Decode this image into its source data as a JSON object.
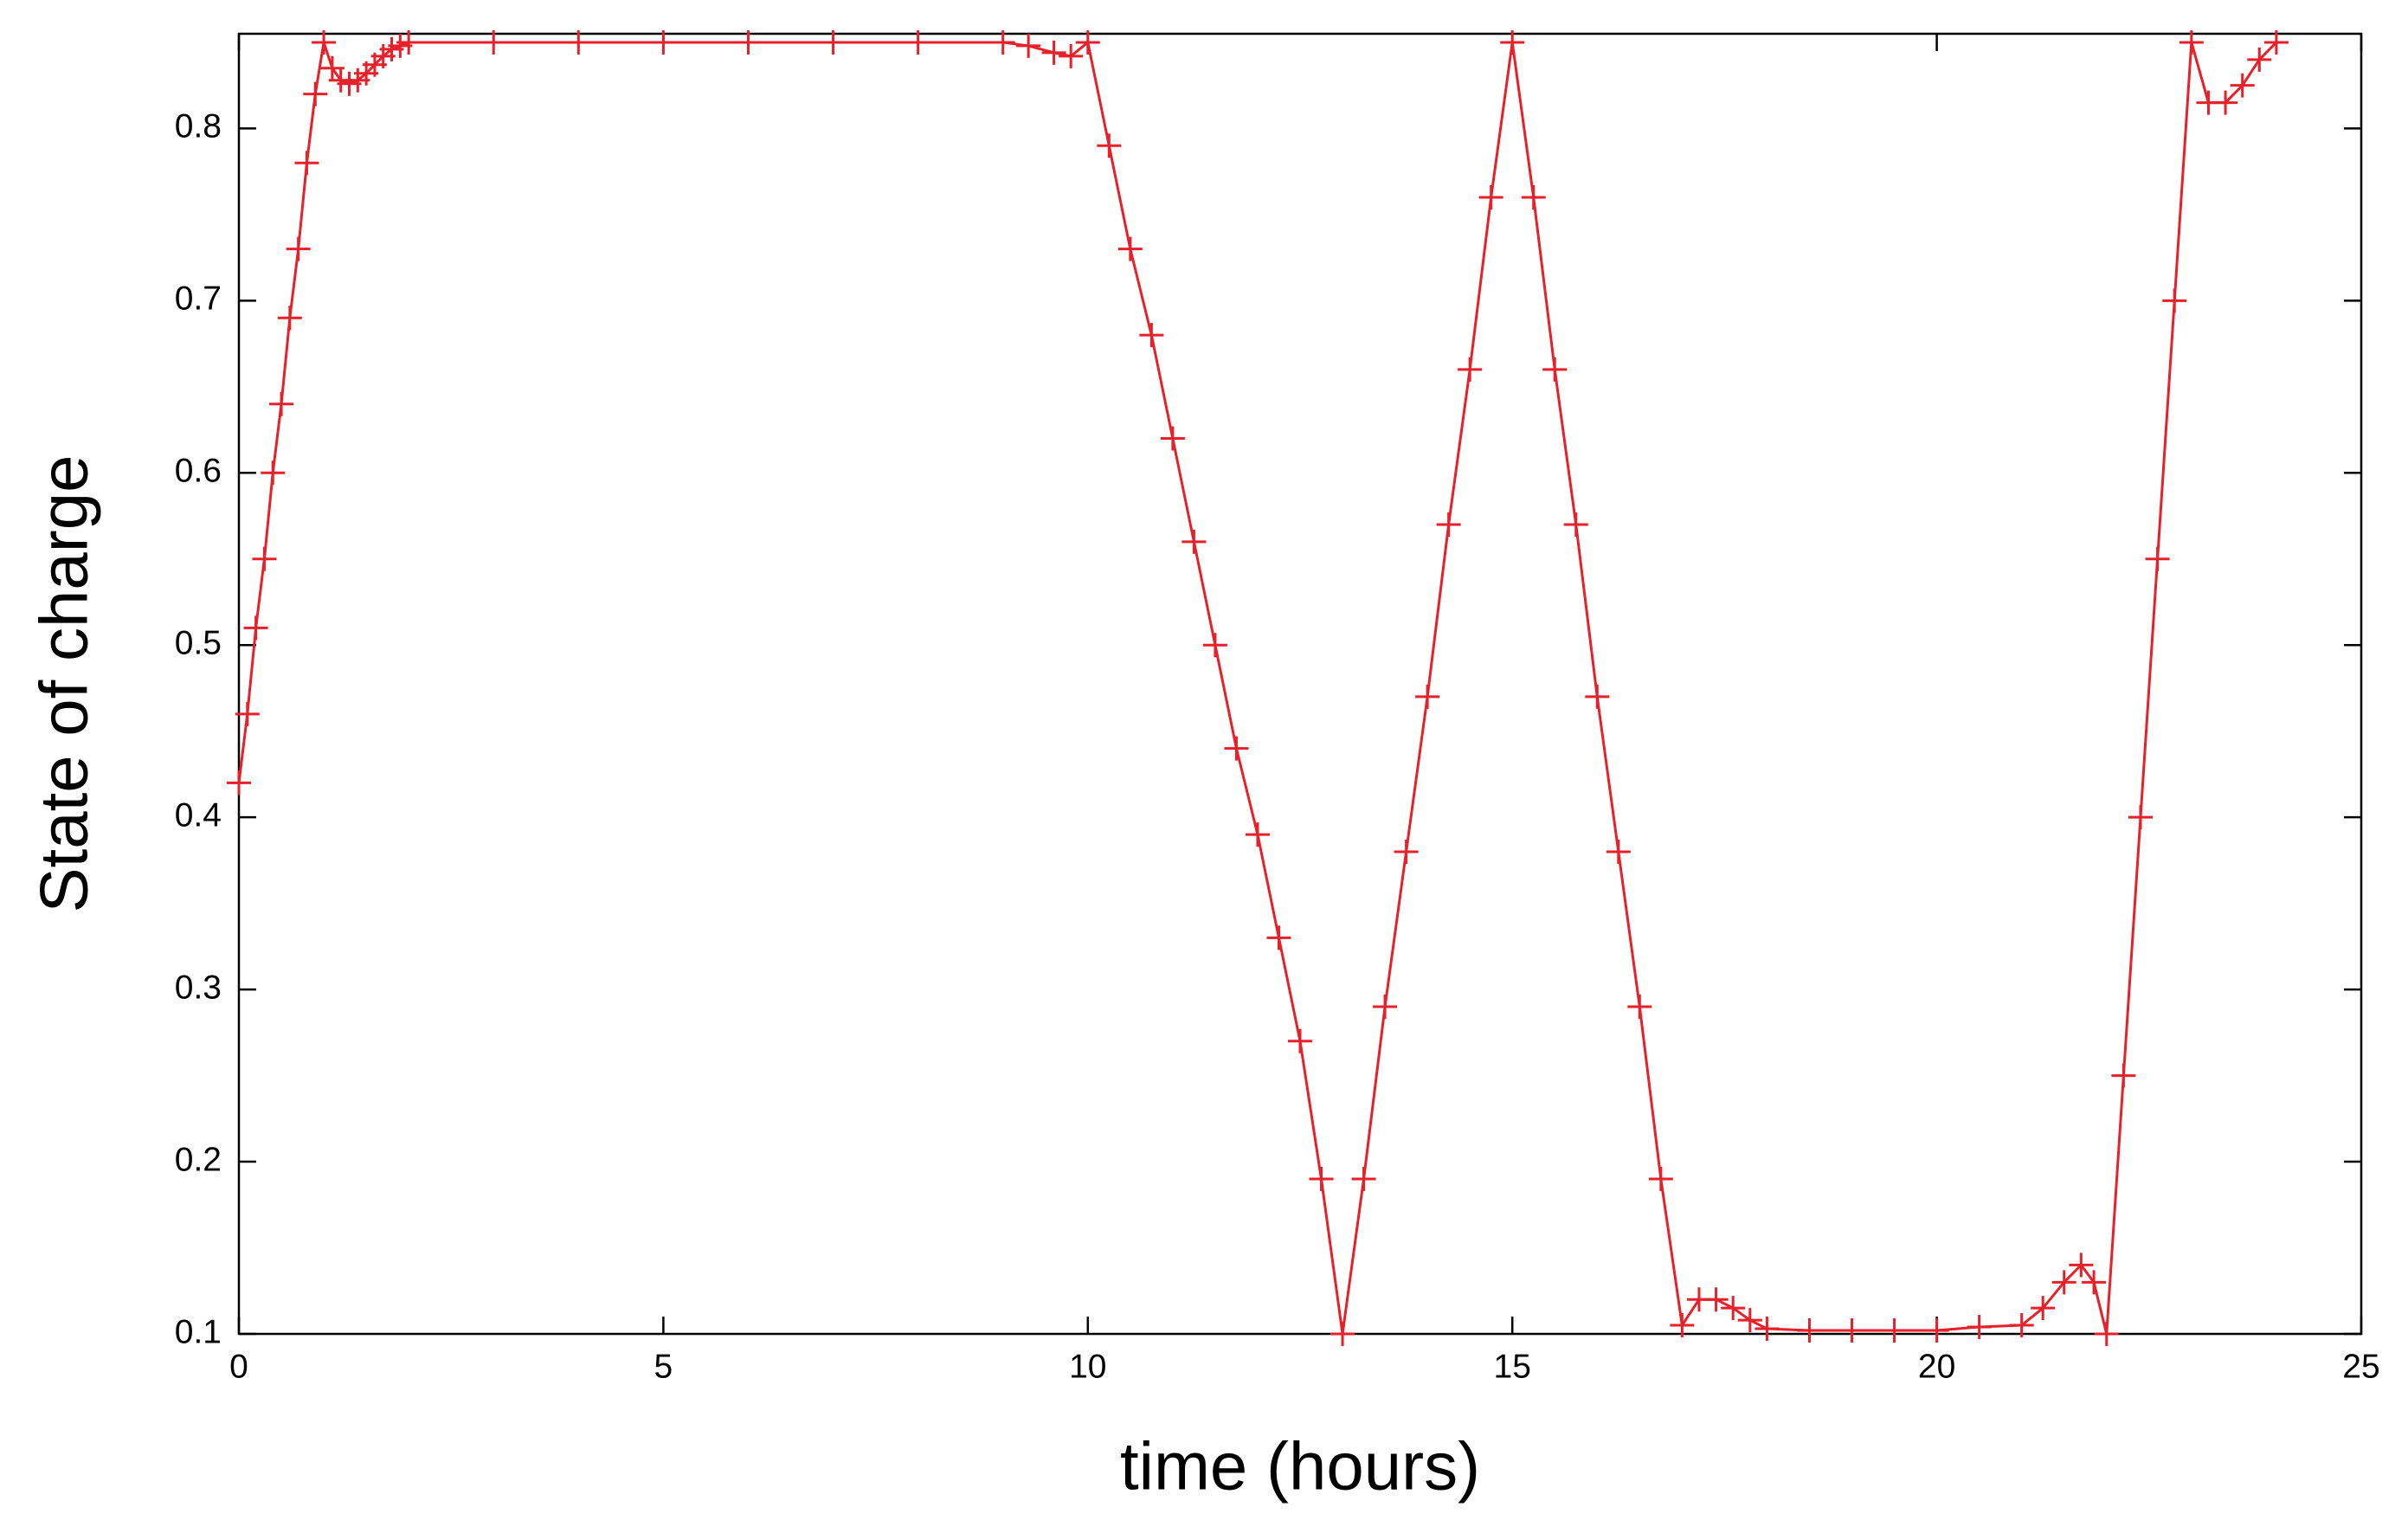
{
  "chart_data": {
    "type": "line",
    "x_label": "time (hours)",
    "y_label": "State of charge",
    "color": "#e8202a",
    "marker": "plus",
    "x": [
      0,
      0.1,
      0.2,
      0.3,
      0.4,
      0.5,
      0.6,
      0.7,
      0.8,
      0.9,
      1.0,
      1.1,
      1.2,
      1.3,
      1.4,
      1.5,
      1.6,
      1.7,
      1.8,
      1.9,
      2.0,
      3,
      4,
      5,
      6,
      7,
      8,
      9,
      9.3,
      9.6,
      9.8,
      10,
      10.25,
      10.5,
      10.75,
      11,
      11.25,
      11.5,
      11.75,
      12,
      12.25,
      12.5,
      12.75,
      13,
      13.25,
      13.5,
      13.75,
      14,
      14.25,
      14.5,
      14.75,
      15,
      15.25,
      15.5,
      15.75,
      16,
      16.25,
      16.5,
      16.75,
      17,
      17.2,
      17.4,
      17.6,
      17.8,
      18,
      18.5,
      19,
      19.5,
      20,
      20.5,
      21,
      21.25,
      21.5,
      21.7,
      21.85,
      22,
      22.2,
      22.4,
      22.6,
      22.8,
      23,
      23.2,
      23.4,
      23.6,
      23.8,
      24
    ],
    "values": [
      0.42,
      0.46,
      0.51,
      0.55,
      0.6,
      0.64,
      0.69,
      0.73,
      0.78,
      0.82,
      0.85,
      0.835,
      0.828,
      0.826,
      0.828,
      0.832,
      0.837,
      0.842,
      0.846,
      0.848,
      0.85,
      0.85,
      0.85,
      0.85,
      0.85,
      0.85,
      0.85,
      0.85,
      0.848,
      0.844,
      0.842,
      0.85,
      0.79,
      0.73,
      0.68,
      0.62,
      0.56,
      0.5,
      0.44,
      0.39,
      0.33,
      0.27,
      0.19,
      0.1,
      0.19,
      0.29,
      0.38,
      0.47,
      0.57,
      0.66,
      0.76,
      0.85,
      0.76,
      0.66,
      0.57,
      0.47,
      0.38,
      0.29,
      0.19,
      0.105,
      0.12,
      0.12,
      0.115,
      0.108,
      0.103,
      0.102,
      0.102,
      0.102,
      0.102,
      0.104,
      0.105,
      0.115,
      0.13,
      0.14,
      0.13,
      0.1,
      0.25,
      0.4,
      0.55,
      0.7,
      0.85,
      0.815,
      0.815,
      0.825,
      0.84,
      0.85
    ],
    "xlim": [
      0,
      25
    ],
    "ylim": [
      0.1,
      0.855
    ],
    "xticks": [
      0,
      5,
      10,
      15,
      20,
      25
    ],
    "yticks": [
      0.1,
      0.2,
      0.3,
      0.4,
      0.5,
      0.6,
      0.7,
      0.8
    ]
  }
}
